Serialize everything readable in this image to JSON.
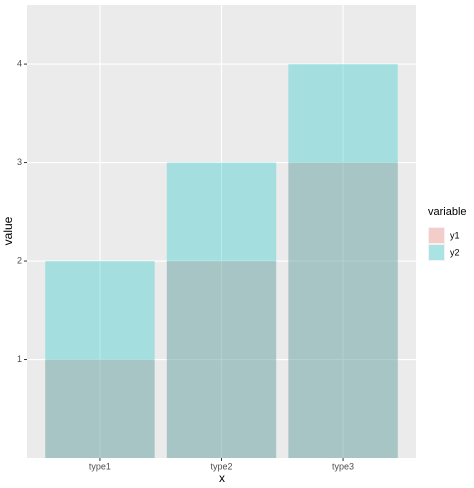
{
  "chart_data": {
    "type": "bar",
    "barmode": "overlay",
    "opacity": 0.3,
    "categories": [
      "type1",
      "type2",
      "type3"
    ],
    "series": [
      {
        "name": "y1",
        "color": "#F8766D",
        "values": [
          1,
          2,
          3
        ]
      },
      {
        "name": "y2",
        "color": "#00BFC4",
        "values": [
          2,
          3,
          4
        ]
      }
    ],
    "xlabel": "x",
    "ylabel": "value",
    "legend_title": "variable",
    "ylim": [
      0,
      4.6
    ],
    "yticks": [
      1,
      2,
      3,
      4
    ],
    "grid": true,
    "legend": "right"
  }
}
